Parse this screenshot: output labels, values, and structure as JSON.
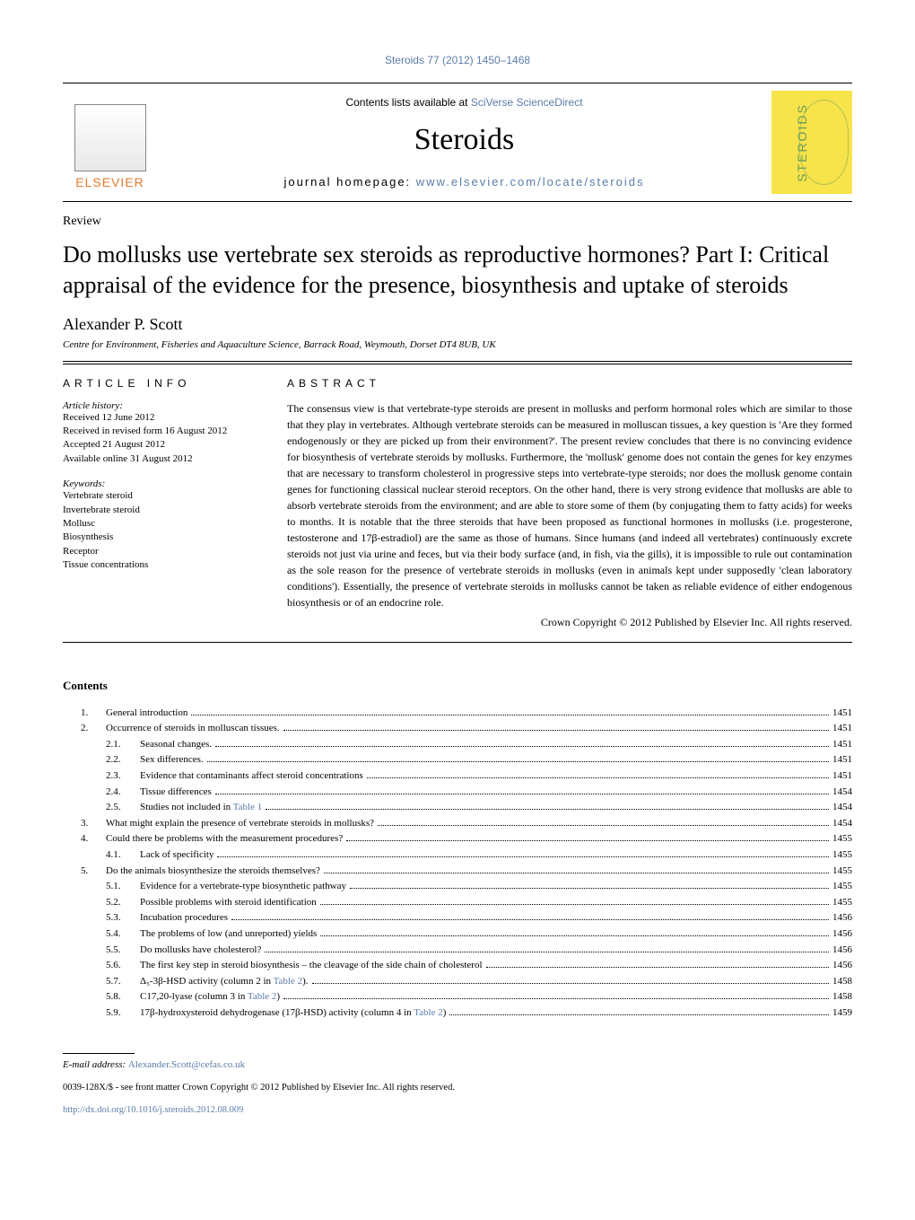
{
  "journal_ref": "Steroids 77 (2012) 1450–1468",
  "header": {
    "contents_prefix": "Contents lists available at ",
    "contents_link": "SciVerse ScienceDirect",
    "journal_name": "Steroids",
    "homepage_prefix": "journal homepage: ",
    "homepage_link": "www.elsevier.com/locate/steroids",
    "publisher": "ELSEVIER",
    "cover_text": "STEROIDS"
  },
  "article": {
    "type": "Review",
    "title": "Do mollusks use vertebrate sex steroids as reproductive hormones? Part I: Critical appraisal of the evidence for the presence, biosynthesis and uptake of steroids",
    "author": "Alexander P. Scott",
    "affiliation": "Centre for Environment, Fisheries and Aquaculture Science, Barrack Road, Weymouth, Dorset DT4 8UB, UK"
  },
  "info": {
    "heading": "ARTICLE INFO",
    "history_label": "Article history:",
    "history": [
      "Received 12 June 2012",
      "Received in revised form 16 August 2012",
      "Accepted 21 August 2012",
      "Available online 31 August 2012"
    ],
    "keywords_label": "Keywords:",
    "keywords": [
      "Vertebrate steroid",
      "Invertebrate steroid",
      "Mollusc",
      "Biosynthesis",
      "Receptor",
      "Tissue concentrations"
    ]
  },
  "abstract": {
    "heading": "ABSTRACT",
    "text": "The consensus view is that vertebrate-type steroids are present in mollusks and perform hormonal roles which are similar to those that they play in vertebrates. Although vertebrate steroids can be measured in molluscan tissues, a key question is 'Are they formed endogenously or they are picked up from their environment?'. The present review concludes that there is no convincing evidence for biosynthesis of vertebrate steroids by mollusks. Furthermore, the 'mollusk' genome does not contain the genes for key enzymes that are necessary to transform cholesterol in progressive steps into vertebrate-type steroids; nor does the mollusk genome contain genes for functioning classical nuclear steroid receptors. On the other hand, there is very strong evidence that mollusks are able to absorb vertebrate steroids from the environment; and are able to store some of them (by conjugating them to fatty acids) for weeks to months. It is notable that the three steroids that have been proposed as functional hormones in mollusks (i.e. progesterone, testosterone and 17β-estradiol) are the same as those of humans. Since humans (and indeed all vertebrates) continuously excrete steroids not just via urine and feces, but via their body surface (and, in fish, via the gills), it is impossible to rule out contamination as the sole reason for the presence of vertebrate steroids in mollusks (even in animals kept under supposedly 'clean laboratory conditions'). Essentially, the presence of vertebrate steroids in mollusks cannot be taken as reliable evidence of either endogenous biosynthesis or of an endocrine role.",
    "copyright": "Crown Copyright © 2012 Published by Elsevier Inc. All rights reserved."
  },
  "contents_heading": "Contents",
  "toc": [
    {
      "level": 1,
      "num": "1.",
      "title": "General introduction",
      "page": "1451"
    },
    {
      "level": 1,
      "num": "2.",
      "title": "Occurrence of steroids in molluscan tissues.",
      "page": "1451"
    },
    {
      "level": 2,
      "num": "2.1.",
      "title": "Seasonal changes.",
      "page": "1451"
    },
    {
      "level": 2,
      "num": "2.2.",
      "title": "Sex differences.",
      "page": "1451"
    },
    {
      "level": 2,
      "num": "2.3.",
      "title": "Evidence that contaminants affect steroid concentrations",
      "page": "1451"
    },
    {
      "level": 2,
      "num": "2.4.",
      "title": "Tissue differences",
      "page": "1454"
    },
    {
      "level": 2,
      "num": "2.5.",
      "title": "Studies not included in ",
      "link": "Table 1",
      "page": "1454"
    },
    {
      "level": 1,
      "num": "3.",
      "title": "What might explain the presence of vertebrate steroids in mollusks?",
      "page": "1454"
    },
    {
      "level": 1,
      "num": "4.",
      "title": "Could there be problems with the measurement procedures?",
      "page": "1455"
    },
    {
      "level": 2,
      "num": "4.1.",
      "title": "Lack of specificity",
      "page": "1455"
    },
    {
      "level": 1,
      "num": "5.",
      "title": "Do the animals biosynthesize the steroids themselves?",
      "page": "1455"
    },
    {
      "level": 2,
      "num": "5.1.",
      "title": "Evidence for a vertebrate-type biosynthetic pathway",
      "page": "1455"
    },
    {
      "level": 2,
      "num": "5.2.",
      "title": "Possible problems with steroid identification",
      "page": "1455"
    },
    {
      "level": 2,
      "num": "5.3.",
      "title": "Incubation procedures",
      "page": "1456"
    },
    {
      "level": 2,
      "num": "5.4.",
      "title": "The problems of low (and unreported) yields",
      "page": "1456"
    },
    {
      "level": 2,
      "num": "5.5.",
      "title": "Do mollusks have cholesterol?",
      "page": "1456"
    },
    {
      "level": 2,
      "num": "5.6.",
      "title": "The first key step in steroid biosynthesis – the cleavage of the side chain of cholesterol",
      "page": "1456"
    },
    {
      "level": 2,
      "num": "5.7.",
      "title": "Δ₅-3β-HSD activity (column 2 in ",
      "link": "Table 2",
      "title_after": ").",
      "page": "1458"
    },
    {
      "level": 2,
      "num": "5.8.",
      "title": "C17,20-lyase (column 3 in ",
      "link": "Table 2",
      "title_after": ")",
      "page": "1458"
    },
    {
      "level": 2,
      "num": "5.9.",
      "title": "17β-hydroxysteroid dehydrogenase (17β-HSD) activity (column 4 in ",
      "link": "Table 2",
      "title_after": ")",
      "page": "1459"
    }
  ],
  "footer": {
    "email_label": "E-mail address: ",
    "email": "Alexander.Scott@cefas.co.uk",
    "front_matter": "0039-128X/$ - see front matter Crown Copyright © 2012 Published by Elsevier Inc. All rights reserved.",
    "doi": "http://dx.doi.org/10.1016/j.steroids.2012.08.009"
  },
  "colors": {
    "link": "#5b7ca8",
    "publisher_orange": "#e47a2e",
    "cover_yellow": "#f7e34a",
    "cover_green": "#6a9c5a"
  }
}
